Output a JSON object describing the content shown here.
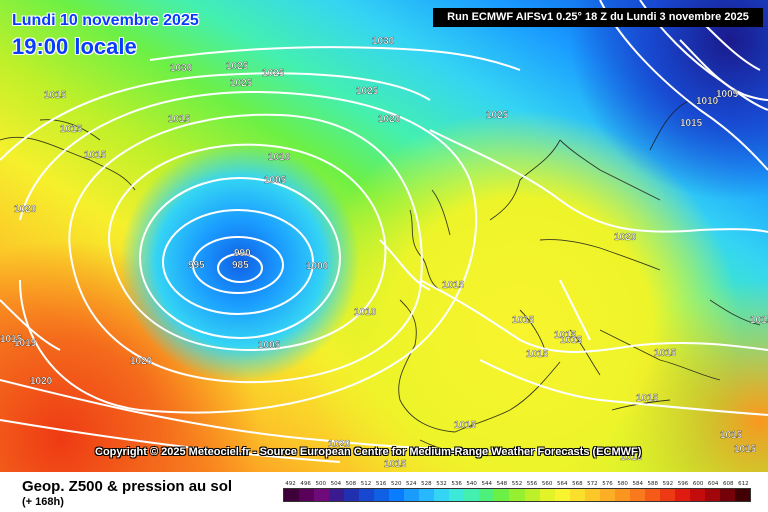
{
  "header": {
    "date_line": "Lundi 10 novembre 2025",
    "time_line": "19:00 locale",
    "run_info": "Run ECMWF AIFSv1 0.25° 18 Z du Lundi 3 novembre 2025"
  },
  "copyright": "Copyright © 2025 Meteociel.fr - Source European Centre for Medium-Range Weather Forecasts (ECMWF)",
  "footer": {
    "product": "Geop. Z500 & pression au sol",
    "lead_time": "(+ 168h)"
  },
  "legend": {
    "values": [
      "492",
      "496",
      "500",
      "504",
      "508",
      "512",
      "516",
      "520",
      "524",
      "528",
      "532",
      "536",
      "540",
      "544",
      "548",
      "552",
      "556",
      "560",
      "564",
      "568",
      "572",
      "576",
      "580",
      "584",
      "588",
      "592",
      "596",
      "600",
      "604",
      "608",
      "612"
    ],
    "colors": [
      "#3d0039",
      "#5a005a",
      "#6e0a7a",
      "#3a1a8f",
      "#2030b0",
      "#1848d0",
      "#1060e6",
      "#0a7cff",
      "#1a9cff",
      "#28b8ff",
      "#34d4f4",
      "#3ce8d8",
      "#44f0b0",
      "#4ef07c",
      "#6cf046",
      "#96f030",
      "#bef02a",
      "#e2f428",
      "#f8f42e",
      "#fae02a",
      "#fcc828",
      "#fcaf24",
      "#fa9620",
      "#f87a1c",
      "#f45a18",
      "#ee3a14",
      "#e01c10",
      "#c40c0c",
      "#a0060a",
      "#740208",
      "#400004"
    ]
  },
  "map": {
    "isobars": [
      {
        "label": "1030"
      },
      {
        "label": "1030"
      },
      {
        "label": "1025"
      },
      {
        "label": "1025"
      },
      {
        "label": "1025"
      },
      {
        "label": "1025"
      },
      {
        "label": "1025"
      },
      {
        "label": "1015"
      },
      {
        "label": "1015"
      },
      {
        "label": "1015"
      },
      {
        "label": "1015"
      },
      {
        "label": "1020"
      },
      {
        "label": "1020"
      },
      {
        "label": "1010"
      },
      {
        "label": "1005"
      },
      {
        "label": "990"
      },
      {
        "label": "985"
      },
      {
        "label": "995"
      },
      {
        "label": "1000"
      },
      {
        "label": "1010"
      },
      {
        "label": "1005"
      },
      {
        "label": "1015"
      },
      {
        "label": "1020"
      },
      {
        "label": "1020"
      },
      {
        "label": "1015"
      },
      {
        "label": "1020"
      },
      {
        "label": "1010"
      },
      {
        "label": "1005"
      },
      {
        "label": "1015"
      },
      {
        "label": "1015"
      },
      {
        "label": "1015"
      },
      {
        "label": "1015"
      },
      {
        "label": "1015"
      },
      {
        "label": "1015"
      },
      {
        "label": "1015"
      },
      {
        "label": "1015"
      },
      {
        "label": "1015"
      },
      {
        "label": "1015"
      },
      {
        "label": "1020"
      },
      {
        "label": "1015"
      },
      {
        "label": "1015"
      },
      {
        "label": "1015"
      },
      {
        "label": "1015"
      }
    ]
  }
}
